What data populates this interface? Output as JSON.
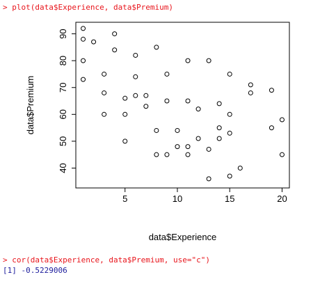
{
  "console": {
    "command1": "> plot(data$Experience, data$Premium)",
    "command2": "> cor(data$Experience, data$Premium, use=\"c\")",
    "output": "[1] -0.5229006"
  },
  "chart_data": {
    "type": "scatter",
    "title": "",
    "xlabel": "data$Experience",
    "ylabel": "data$Premium",
    "xlim": [
      0.3,
      20.7
    ],
    "ylim": [
      32.6,
      94.3
    ],
    "xticks": [
      5,
      10,
      15,
      20
    ],
    "yticks": [
      40,
      50,
      60,
      70,
      80,
      90
    ],
    "grid": false,
    "marker_color": "#000000",
    "points": [
      [
        1,
        92
      ],
      [
        1,
        88
      ],
      [
        1,
        80
      ],
      [
        1,
        73
      ],
      [
        2,
        87
      ],
      [
        3,
        75
      ],
      [
        3,
        68
      ],
      [
        3,
        60
      ],
      [
        4,
        90
      ],
      [
        4,
        84
      ],
      [
        5,
        66
      ],
      [
        5,
        60
      ],
      [
        5,
        50
      ],
      [
        6,
        82
      ],
      [
        6,
        74
      ],
      [
        6,
        67
      ],
      [
        7,
        67
      ],
      [
        7,
        63
      ],
      [
        8,
        85
      ],
      [
        8,
        54
      ],
      [
        8,
        45
      ],
      [
        9,
        75
      ],
      [
        9,
        65
      ],
      [
        9,
        45
      ],
      [
        10,
        54
      ],
      [
        10,
        48
      ],
      [
        11,
        80
      ],
      [
        11,
        65
      ],
      [
        11,
        48
      ],
      [
        11,
        45
      ],
      [
        12,
        62
      ],
      [
        12,
        51
      ],
      [
        13,
        80
      ],
      [
        13,
        47
      ],
      [
        13,
        36
      ],
      [
        14,
        64
      ],
      [
        14,
        55
      ],
      [
        14,
        51
      ],
      [
        15,
        75
      ],
      [
        15,
        60
      ],
      [
        15,
        53
      ],
      [
        15,
        37
      ],
      [
        16,
        40
      ],
      [
        17,
        71
      ],
      [
        17,
        68
      ],
      [
        19,
        69
      ],
      [
        19,
        55
      ],
      [
        20,
        58
      ],
      [
        20,
        45
      ]
    ]
  }
}
